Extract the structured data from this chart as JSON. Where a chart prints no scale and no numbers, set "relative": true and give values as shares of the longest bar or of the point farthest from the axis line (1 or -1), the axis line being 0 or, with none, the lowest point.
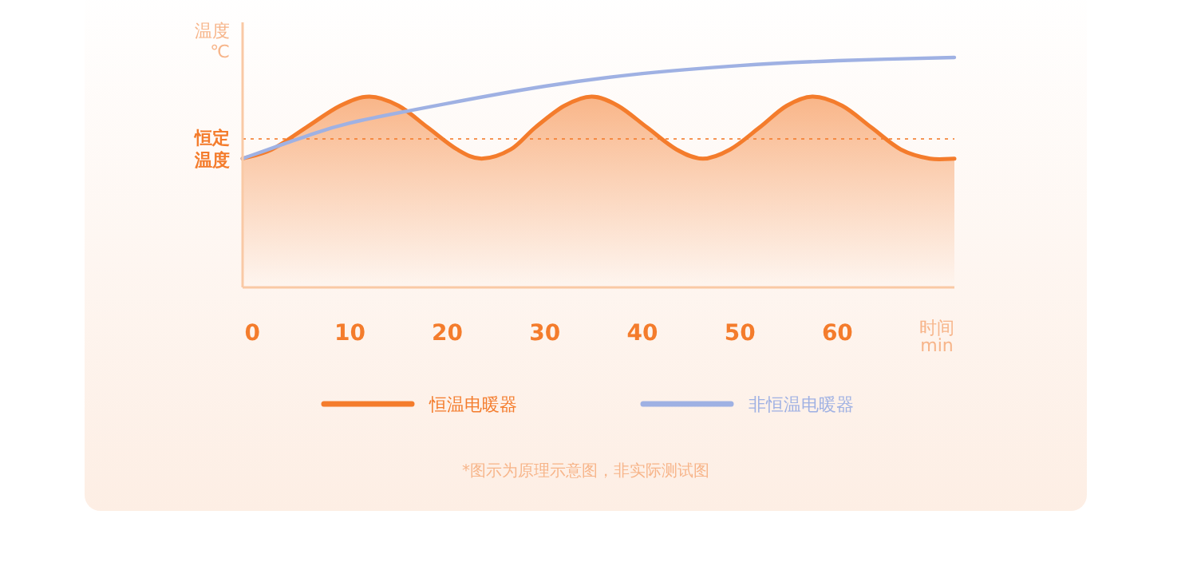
{
  "chart_data": {
    "type": "line",
    "relative": true,
    "xlabel": "时间\nmin",
    "ylabel": "温度℃",
    "xlim": [
      -1,
      72
    ],
    "xticks": [
      0,
      10,
      20,
      30,
      40,
      50,
      60
    ],
    "series": [
      {
        "name": "恒温电暖器",
        "type": "area",
        "color": "#f47c2c",
        "x": [
          -1,
          2,
          5.5,
          9,
          12,
          15,
          18,
          21,
          23.5,
          26.5,
          29,
          32,
          34.8,
          37.5,
          40.5,
          43.5,
          46.2,
          49,
          52,
          54.8,
          57.5,
          60.5,
          63.5,
          66.5,
          69.5,
          72
        ],
        "values": [
          0.56,
          0.6,
          0.695,
          0.79,
          0.83,
          0.79,
          0.695,
          0.6,
          0.56,
          0.6,
          0.695,
          0.79,
          0.83,
          0.79,
          0.695,
          0.6,
          0.56,
          0.6,
          0.695,
          0.79,
          0.83,
          0.79,
          0.695,
          0.6,
          0.56,
          0.56
        ]
      },
      {
        "name": "非恒温电暖器",
        "type": "line",
        "color": "#9fb1e3",
        "x": [
          -1,
          5,
          10,
          20,
          30,
          40,
          50,
          60,
          72
        ],
        "values": [
          0.56,
          0.65,
          0.715,
          0.8,
          0.875,
          0.93,
          0.965,
          0.986,
          1.0
        ]
      }
    ],
    "ref_lines": [
      {
        "axis": "y",
        "value": 0.646,
        "label": "恒定温度",
        "color": "#f47c2c",
        "line_style": "dotted"
      }
    ],
    "legend": "bottom",
    "annotations": [
      "*图示为原理示意图，非实际测试图"
    ]
  }
}
